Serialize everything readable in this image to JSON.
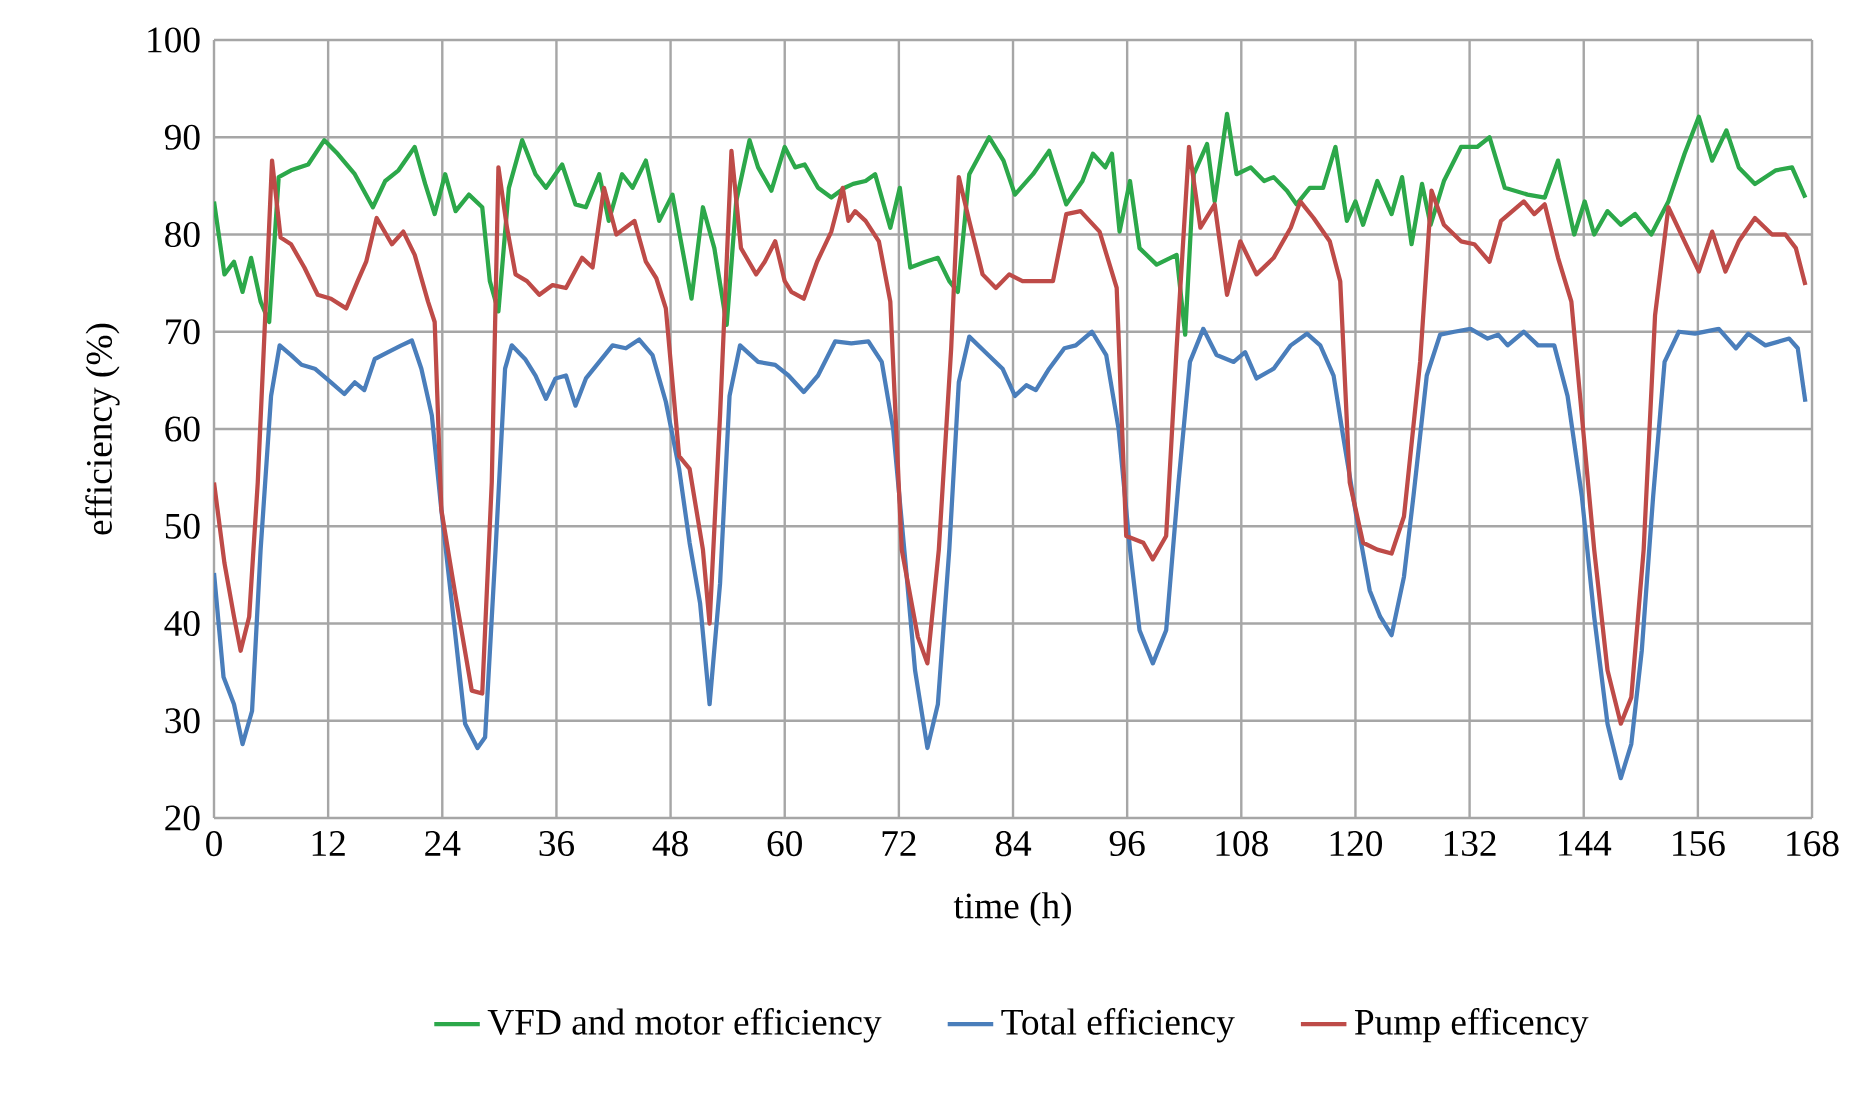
{
  "chart_data": {
    "type": "line",
    "xlabel": "time (h)",
    "ylabel": "efficiency (%)",
    "xlim": [
      0,
      168
    ],
    "xticks": [
      0,
      12,
      24,
      36,
      48,
      60,
      72,
      84,
      96,
      108,
      120,
      132,
      144,
      156,
      168
    ],
    "ylim": [
      20,
      100
    ],
    "yticks": [
      20,
      30,
      40,
      50,
      60,
      70,
      80,
      90,
      100
    ],
    "grid": true,
    "legend": "bottom",
    "marker": "none",
    "line_style": "solid",
    "series": [
      {
        "name": "VFD and motor efficiency",
        "color": "#2ca84a",
        "x": [
          0,
          1.1,
          2.1,
          3,
          3.9,
          4.9,
          5.8,
          6.8,
          8.1,
          9.9,
          11.6,
          13,
          14.8,
          16.7,
          18,
          19.4,
          21.1,
          22.2,
          23.2,
          24.3,
          25.4,
          26.8,
          28.2,
          29,
          29.9,
          31,
          32.4,
          33.8,
          34.9,
          36.6,
          38,
          39.1,
          40.5,
          41.5,
          42.9,
          44,
          45.4,
          46.8,
          48.2,
          48.9,
          50.2,
          51.4,
          52.6,
          53.9,
          54.9,
          56.3,
          57.2,
          58.6,
          60,
          61.1,
          62.1,
          63.5,
          64.9,
          66.3,
          67.2,
          68.5,
          69.5,
          71.1,
          72.1,
          73.2,
          74.8,
          76.1,
          77.3,
          78.2,
          79.4,
          81.5,
          83,
          84.2,
          86.1,
          87.8,
          89.6,
          91.3,
          92.4,
          93.7,
          94.4,
          95.2,
          96.3,
          97.3,
          99.1,
          101.2,
          102.1,
          103,
          104.4,
          105.2,
          106.5,
          107.5,
          109,
          110.4,
          111.4,
          112.8,
          113.8,
          115.2,
          116.6,
          117.9,
          119.1,
          120,
          120.8,
          122.3,
          123.8,
          124.9,
          125.9,
          127,
          127.9,
          129.3,
          131.1,
          132.8,
          134.1,
          135.7,
          138.1,
          139.9,
          141.3,
          143,
          144.1,
          145.1,
          146.5,
          147.9,
          149.4,
          151.1,
          152.9,
          154.6,
          156.1,
          157.5,
          159,
          160.3,
          162,
          164.2,
          165.9,
          167.3
        ],
        "values": [
          83.4,
          75.9,
          77.2,
          74.1,
          77.6,
          73.1,
          71,
          85.9,
          86.6,
          87.2,
          89.7,
          88.3,
          86.2,
          82.8,
          85.5,
          86.6,
          89,
          85.2,
          82.1,
          86.2,
          82.4,
          84.1,
          82.8,
          75.2,
          72.1,
          84.8,
          89.7,
          86.2,
          84.8,
          87.2,
          83.1,
          82.8,
          86.2,
          81.4,
          86.2,
          84.8,
          87.6,
          81.4,
          84.1,
          80.3,
          73.4,
          82.8,
          78.6,
          70.7,
          83.4,
          89.7,
          86.9,
          84.5,
          89,
          86.9,
          87.2,
          84.8,
          83.8,
          84.8,
          85.2,
          85.5,
          86.2,
          80.7,
          84.8,
          76.6,
          77.2,
          77.6,
          75.2,
          74.1,
          86.2,
          90,
          87.6,
          84.1,
          86.2,
          88.6,
          83.1,
          85.5,
          88.3,
          86.9,
          88.3,
          80.3,
          85.5,
          78.6,
          76.9,
          77.9,
          69.7,
          86.2,
          89.3,
          83.4,
          92.4,
          86.2,
          86.9,
          85.5,
          85.9,
          84.5,
          83.1,
          84.8,
          84.8,
          89,
          81.4,
          83.4,
          81,
          85.5,
          82.1,
          85.9,
          79,
          85.2,
          81,
          85.5,
          89,
          89,
          90,
          84.8,
          84.1,
          83.8,
          87.6,
          80,
          83.4,
          80,
          82.4,
          81,
          82.1,
          80,
          83.4,
          88.3,
          92.1,
          87.6,
          90.7,
          86.9,
          85.2,
          86.6,
          86.9,
          83.8
        ]
      },
      {
        "name": "Total efficiency",
        "color": "#4a7ebb",
        "x": [
          0,
          1,
          2.1,
          3,
          4,
          4.9,
          6,
          6.9,
          8.1,
          9.2,
          10.6,
          12.3,
          13.7,
          14.8,
          15.8,
          16.9,
          18.3,
          19.7,
          20.8,
          21.8,
          22.9,
          23.9,
          25,
          26.4,
          27.7,
          28.5,
          29.6,
          30.6,
          31.3,
          32.7,
          33.8,
          34.9,
          35.9,
          37,
          38,
          39.1,
          40.5,
          41.9,
          43.3,
          44.7,
          46.1,
          47.5,
          48.9,
          50,
          51.1,
          52.1,
          53.2,
          54.2,
          55.3,
          57.2,
          59,
          60.4,
          62,
          63.5,
          65.3,
          67,
          68.8,
          70.2,
          71.4,
          72.7,
          73.7,
          75,
          76.1,
          77.3,
          78.3,
          79.4,
          81.1,
          82.9,
          84.2,
          85.4,
          86.4,
          87.8,
          89.4,
          90.6,
          92.3,
          93.8,
          95.1,
          96.3,
          97.3,
          98.7,
          100.1,
          101.4,
          102.6,
          104,
          105.4,
          107.2,
          108.4,
          109.6,
          111.4,
          113.2,
          114.9,
          116.3,
          117.7,
          118.7,
          120.1,
          121.5,
          122.6,
          123.8,
          125.1,
          126.1,
          127.5,
          128.9,
          130.4,
          132.1,
          133.9,
          135,
          136,
          137.7,
          139.2,
          140.9,
          142.3,
          143.8,
          145.1,
          146.5,
          147.9,
          149,
          150.1,
          151.3,
          152.5,
          154,
          155.7,
          158.2,
          160,
          161.3,
          163.1,
          165.6,
          166.5,
          167.3
        ],
        "values": [
          45.2,
          34.5,
          31.7,
          27.6,
          31,
          47.6,
          63.4,
          68.6,
          67.6,
          66.6,
          66.2,
          64.8,
          63.6,
          64.8,
          64,
          67.2,
          67.9,
          68.6,
          69.1,
          66.2,
          61.4,
          51.7,
          42.1,
          29.7,
          27.2,
          28.3,
          47.6,
          66.2,
          68.6,
          67.2,
          65.5,
          63.1,
          65.2,
          65.5,
          62.4,
          65.2,
          66.9,
          68.6,
          68.3,
          69.2,
          67.6,
          62.8,
          55.9,
          48.3,
          42.1,
          31.7,
          44.1,
          63.4,
          68.6,
          66.9,
          66.6,
          65.5,
          63.8,
          65.5,
          69,
          68.8,
          69,
          66.9,
          60,
          46.2,
          35.2,
          27.2,
          31.7,
          47.6,
          64.8,
          69.5,
          67.9,
          66.2,
          63.4,
          64.5,
          64,
          66.2,
          68.3,
          68.6,
          70,
          67.6,
          60,
          47.6,
          39.3,
          35.9,
          39.3,
          54.5,
          66.9,
          70.3,
          67.6,
          66.9,
          67.9,
          65.2,
          66.2,
          68.6,
          69.8,
          68.6,
          65.5,
          59.3,
          51,
          43.4,
          40.7,
          38.8,
          44.8,
          53.1,
          65.5,
          69.7,
          70,
          70.3,
          69.3,
          69.7,
          68.6,
          70,
          68.6,
          68.6,
          63.4,
          53.1,
          40.7,
          29.7,
          24.1,
          27.6,
          37.2,
          53.1,
          66.9,
          70,
          69.8,
          70.3,
          68.3,
          69.8,
          68.6,
          69.3,
          68.3,
          62.8
        ]
      },
      {
        "name": "Pump efficency",
        "color": "#be4b48",
        "x": [
          0,
          1.1,
          2.1,
          2.8,
          3.7,
          4.6,
          5.3,
          6.1,
          7,
          8.1,
          9.5,
          10.9,
          12.3,
          13.9,
          15.1,
          16,
          17.1,
          18.7,
          19.9,
          21.1,
          22.5,
          23.2,
          23.9,
          25.4,
          27.1,
          28.2,
          29.2,
          29.9,
          30.8,
          31.7,
          32.9,
          34.2,
          35.6,
          37,
          38.7,
          39.8,
          41,
          42.3,
          44.2,
          45.4,
          46.5,
          47.5,
          48.9,
          50,
          51.4,
          52.1,
          53.2,
          54.4,
          55.4,
          57,
          57.9,
          59,
          60,
          60.7,
          62,
          63.4,
          64.9,
          66.1,
          66.7,
          67.4,
          68.5,
          69.9,
          71.1,
          72.3,
          74,
          75,
          76.2,
          77.5,
          78.3,
          79.4,
          80.8,
          82.2,
          83.6,
          85,
          86.8,
          88.2,
          89.6,
          91.1,
          93.1,
          94.9,
          95.9,
          97.7,
          98.7,
          100.1,
          101.2,
          102.5,
          103.7,
          105.2,
          106.5,
          107.9,
          109.6,
          111.4,
          113.2,
          114.2,
          115.6,
          117.3,
          118.4,
          119.4,
          120.8,
          122.3,
          123.8,
          125.1,
          126.8,
          128,
          129.3,
          131.1,
          132.5,
          134.1,
          135.3,
          137.7,
          138.8,
          139.9,
          141.3,
          142.7,
          143.8,
          145.1,
          146.5,
          147.9,
          149,
          150.3,
          151.5,
          152.9,
          154.6,
          156.1,
          157.5,
          158.9,
          160.3,
          162,
          163.8,
          165.2,
          166.3,
          167.3
        ],
        "values": [
          54.5,
          46.2,
          40.7,
          37.2,
          40.7,
          54.5,
          69.7,
          87.6,
          79.7,
          79,
          76.6,
          73.8,
          73.4,
          72.4,
          75.2,
          77.2,
          81.7,
          79,
          80.3,
          77.9,
          73.1,
          71,
          51.7,
          42.8,
          33.1,
          32.8,
          54.5,
          86.9,
          80.7,
          75.9,
          75.2,
          73.8,
          74.8,
          74.5,
          77.6,
          76.6,
          84.8,
          80,
          81.4,
          77.2,
          75.5,
          72.4,
          57.2,
          55.9,
          47.6,
          40,
          61.4,
          88.6,
          78.6,
          75.9,
          77.2,
          79.3,
          75.2,
          74.1,
          73.4,
          77.2,
          80.3,
          84.8,
          81.4,
          82.4,
          81.4,
          79.3,
          73.1,
          47.6,
          38.6,
          35.9,
          47.6,
          68.3,
          85.9,
          81.4,
          75.9,
          74.5,
          75.9,
          75.2,
          75.2,
          75.2,
          82.1,
          82.4,
          80.3,
          74.5,
          49,
          48.3,
          46.6,
          49,
          68.3,
          89,
          80.7,
          83.1,
          73.8,
          79.3,
          75.9,
          77.6,
          80.7,
          83.4,
          81.7,
          79.3,
          75.2,
          54.5,
          48.3,
          47.6,
          47.2,
          51,
          66.9,
          84.5,
          81,
          79.3,
          79,
          77.2,
          81.4,
          83.4,
          82.1,
          83.1,
          77.6,
          73.1,
          61.4,
          47.6,
          35.2,
          29.7,
          32.4,
          47.6,
          71.7,
          82.8,
          79.3,
          76.2,
          80.3,
          76.2,
          79.3,
          81.7,
          80,
          80,
          78.6,
          74.8
        ]
      }
    ]
  }
}
